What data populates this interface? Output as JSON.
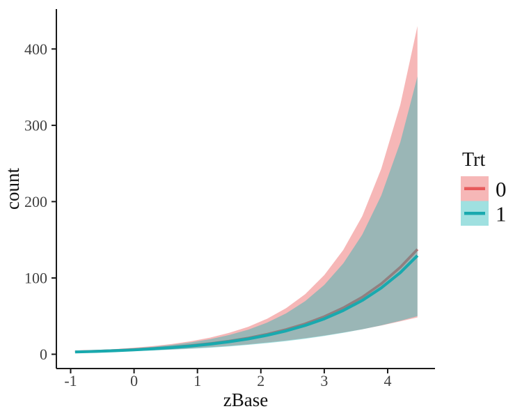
{
  "figure": {
    "background": "#ffffff",
    "kind": "ribbon-line-plot"
  },
  "axes": {
    "x": {
      "title": "zBase",
      "tick_values": [
        -1,
        0,
        1,
        2,
        3,
        4
      ],
      "tick_labels": [
        "-1",
        "0",
        "1",
        "2",
        "3",
        "4"
      ]
    },
    "y": {
      "title": "count",
      "tick_values": [
        0,
        100,
        200,
        300,
        400
      ],
      "tick_labels": [
        "0",
        "100",
        "200",
        "300",
        "400"
      ]
    }
  },
  "legend": {
    "title": "Trt",
    "position": "right"
  },
  "chart_data": {
    "type": "line",
    "title": "",
    "xlabel": "zBase",
    "ylabel": "count",
    "legend_title": "Trt",
    "legend_position": "right",
    "grid": false,
    "theme": "classic",
    "bands": "confidence ribbons around each estimate line",
    "xlim": [
      -1.225,
      4.747
    ],
    "ylim": [
      -18.7,
      452.3
    ],
    "x_ticks": [
      -1,
      0,
      1,
      2,
      3,
      4
    ],
    "y_ticks": [
      0,
      100,
      200,
      300,
      400
    ],
    "x": [
      -0.93,
      -0.6,
      -0.3,
      0,
      0.3,
      0.6,
      0.9,
      1.2,
      1.5,
      1.8,
      2.1,
      2.4,
      2.7,
      3.0,
      3.3,
      3.6,
      3.9,
      4.2,
      4.47
    ],
    "series": [
      {
        "name": "0",
        "line_color": "#E7595B",
        "ribbon_rgba": "rgba(235,90,92,0.44)",
        "estimate": [
          3.2,
          4.0,
          4.9,
          6.1,
          7.5,
          9.2,
          11.4,
          14.0,
          17.3,
          21.3,
          26.3,
          32.4,
          39.9,
          49.3,
          60.8,
          74.9,
          92.4,
          114.0,
          137.6
        ],
        "lower": [
          2.4,
          3.0,
          3.6,
          4.4,
          5.3,
          6.4,
          7.8,
          9.2,
          11.0,
          13.0,
          15.4,
          18.1,
          21.1,
          24.6,
          28.5,
          32.8,
          37.7,
          43.1,
          48.3
        ],
        "upper": [
          4.4,
          5.5,
          6.8,
          8.6,
          10.8,
          13.5,
          17.2,
          21.8,
          28.0,
          36.0,
          46.6,
          60.5,
          78.8,
          103.7,
          136.7,
          181.0,
          243.0,
          327.0,
          430.0
        ]
      },
      {
        "name": "1",
        "line_color": "#19A9AE",
        "ribbon_rgba": "rgba(27,180,182,0.42)",
        "estimate": [
          3.0,
          3.8,
          4.7,
          5.8,
          7.1,
          8.8,
          10.8,
          13.3,
          16.4,
          20.2,
          24.9,
          30.7,
          37.8,
          46.5,
          57.3,
          70.6,
          87.0,
          107.1,
          129.3
        ],
        "lower": [
          2.1,
          2.7,
          3.3,
          4.1,
          4.9,
          6.0,
          7.2,
          8.6,
          10.3,
          12.3,
          14.6,
          17.3,
          20.4,
          23.9,
          28.0,
          32.7,
          37.9,
          43.9,
          49.9
        ],
        "upper": [
          4.0,
          5.0,
          6.3,
          7.8,
          9.8,
          12.4,
          15.6,
          19.7,
          25.2,
          32.2,
          41.5,
          53.7,
          69.7,
          90.8,
          119.0,
          156.7,
          208.0,
          278.0,
          364.0
        ]
      }
    ]
  },
  "style_colors": {
    "axis_line": "#1a1a1a",
    "tick_text": "#404040",
    "title_text": "#111111"
  }
}
